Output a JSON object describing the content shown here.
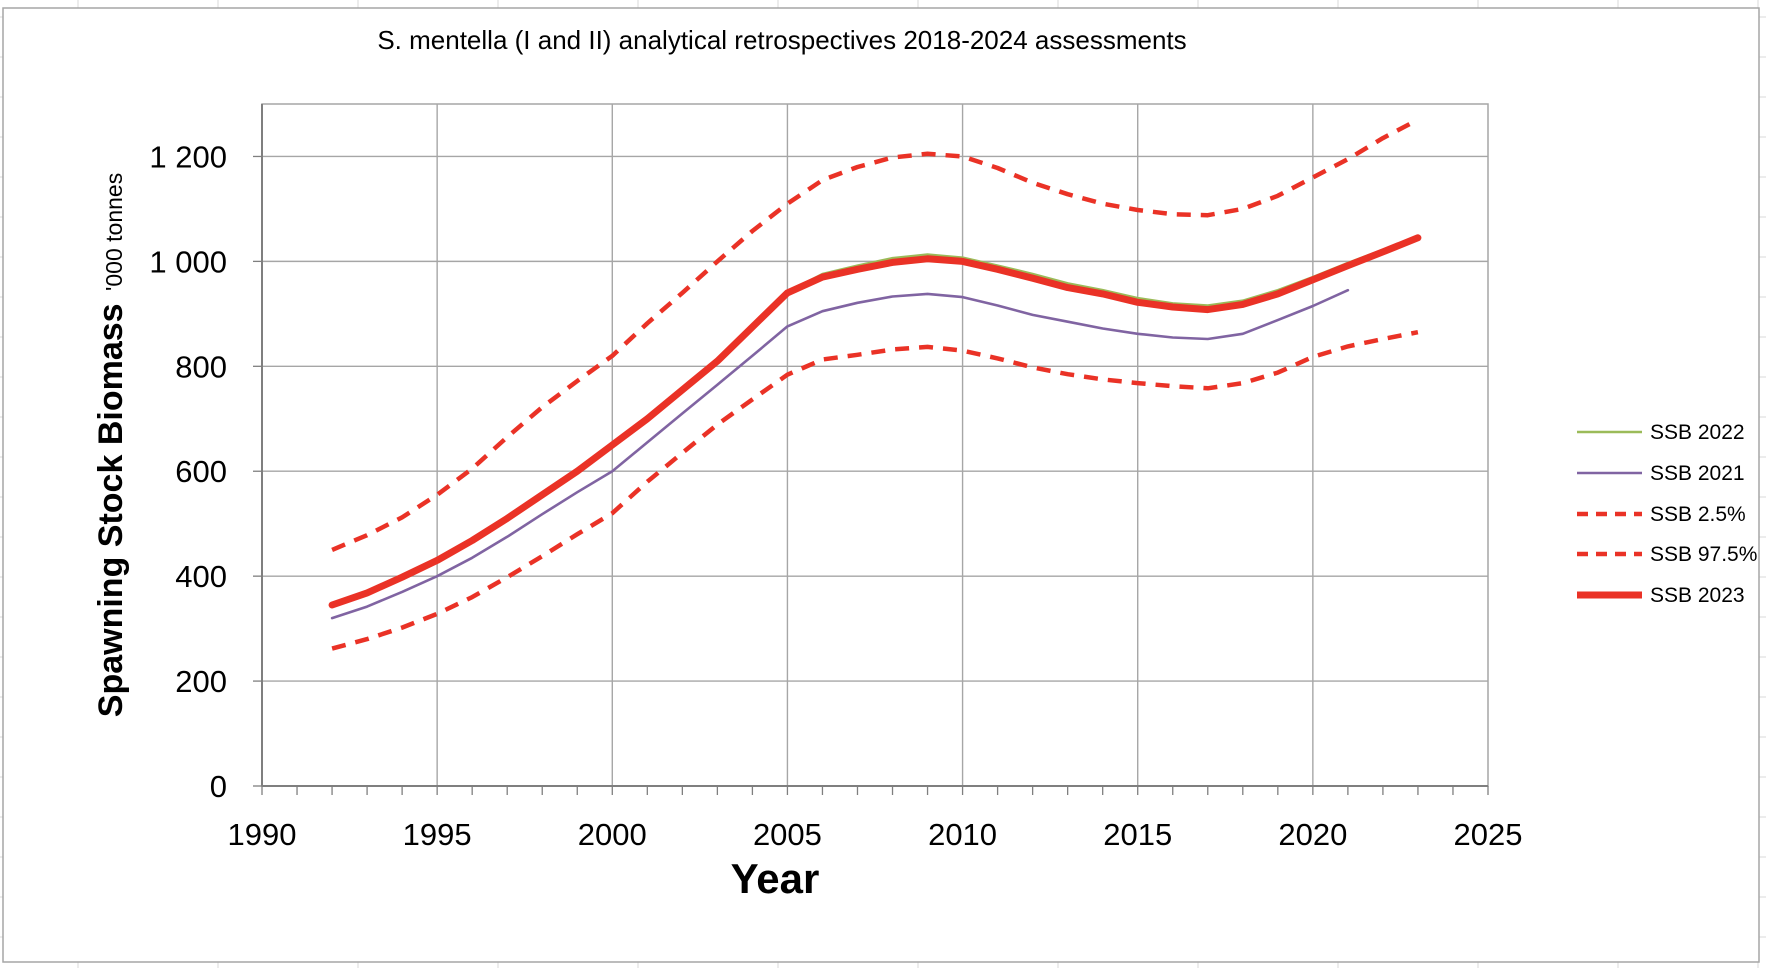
{
  "chart_data": {
    "type": "line",
    "title": "S. mentella (I and II) analytical retrospectives 2018-2024 assessments",
    "xlabel": "Year",
    "ylabel": "Spawning Stock Biomass",
    "ylabel_unit": "'000 tonnes",
    "xlim": [
      1990,
      2025
    ],
    "ylim": [
      0,
      1300
    ],
    "grid": true,
    "legend_position": "right",
    "x_ticks": [
      "1990",
      "1995",
      "2000",
      "2005",
      "2010",
      "2015",
      "2020",
      "2025"
    ],
    "x_tick_values": [
      1990,
      1995,
      2000,
      2005,
      2010,
      2015,
      2020,
      2025
    ],
    "x_minor_tick_step": 1,
    "y_ticks": [
      "0",
      "200",
      "400",
      "600",
      "800",
      "1 000",
      "1 200"
    ],
    "y_tick_values": [
      0,
      200,
      400,
      600,
      800,
      1000,
      1200
    ],
    "x": [
      1992,
      1993,
      1994,
      1995,
      1996,
      1997,
      1998,
      1999,
      2000,
      2001,
      2002,
      2003,
      2004,
      2005,
      2006,
      2007,
      2008,
      2009,
      2010,
      2011,
      2012,
      2013,
      2014,
      2015,
      2016,
      2017,
      2018,
      2019,
      2020,
      2021,
      2022,
      2023
    ],
    "series": [
      {
        "name": "SSB 2022",
        "color": "#9BBB59",
        "style": "solid",
        "width": 2.6,
        "values": [
          345,
          368,
          398,
          430,
          468,
          510,
          555,
          600,
          650,
          700,
          755,
          812,
          877,
          941,
          976,
          992,
          1006,
          1013,
          1007,
          992,
          976,
          958,
          945,
          930,
          920,
          916,
          925,
          945,
          970,
          997,
          1022,
          null
        ]
      },
      {
        "name": "SSB 2021",
        "color": "#8064A2",
        "style": "solid",
        "width": 2.6,
        "values": [
          320,
          342,
          370,
          400,
          435,
          475,
          518,
          560,
          600,
          655,
          710,
          765,
          820,
          876,
          905,
          921,
          933,
          938,
          932,
          916,
          898,
          885,
          872,
          862,
          855,
          852,
          862,
          888,
          915,
          945,
          null,
          null
        ]
      },
      {
        "name": "SSB 2.5%",
        "color": "#EA3226",
        "style": "dashed",
        "width": 4.5,
        "values": [
          262,
          280,
          302,
          328,
          360,
          398,
          438,
          480,
          520,
          580,
          635,
          689,
          737,
          784,
          813,
          822,
          832,
          837,
          830,
          815,
          798,
          785,
          775,
          768,
          762,
          758,
          768,
          788,
          818,
          838,
          852,
          865
        ]
      },
      {
        "name": "SSB 97.5%",
        "color": "#EA3226",
        "style": "dashed",
        "width": 4.5,
        "values": [
          450,
          478,
          512,
          555,
          605,
          665,
          722,
          772,
          820,
          882,
          940,
          1000,
          1058,
          1110,
          1155,
          1180,
          1198,
          1205,
          1200,
          1178,
          1150,
          1128,
          1110,
          1098,
          1090,
          1088,
          1100,
          1125,
          1160,
          1195,
          1235,
          1270
        ]
      },
      {
        "name": "SSB 2023",
        "color": "#EA3226",
        "style": "solid",
        "width": 7,
        "values": [
          345,
          368,
          398,
          430,
          468,
          510,
          555,
          600,
          650,
          700,
          755,
          810,
          875,
          940,
          970,
          985,
          998,
          1005,
          1000,
          985,
          968,
          950,
          938,
          922,
          913,
          908,
          918,
          938,
          965,
          992,
          1018,
          1045
        ]
      }
    ],
    "legend": [
      "SSB 2022",
      "SSB 2021",
      "SSB 2.5%",
      "SSB 97.5%",
      "SSB 2023"
    ]
  },
  "colors": {
    "red_series": "#EA3226",
    "green_series": "#9BBB59",
    "purple_series": "#8064A2",
    "gridline": "#A6A6A6",
    "axis_line": "#7F7F7F",
    "sheet_gridline": "#D9D9D9",
    "chart_border": "#A6A6A6"
  }
}
